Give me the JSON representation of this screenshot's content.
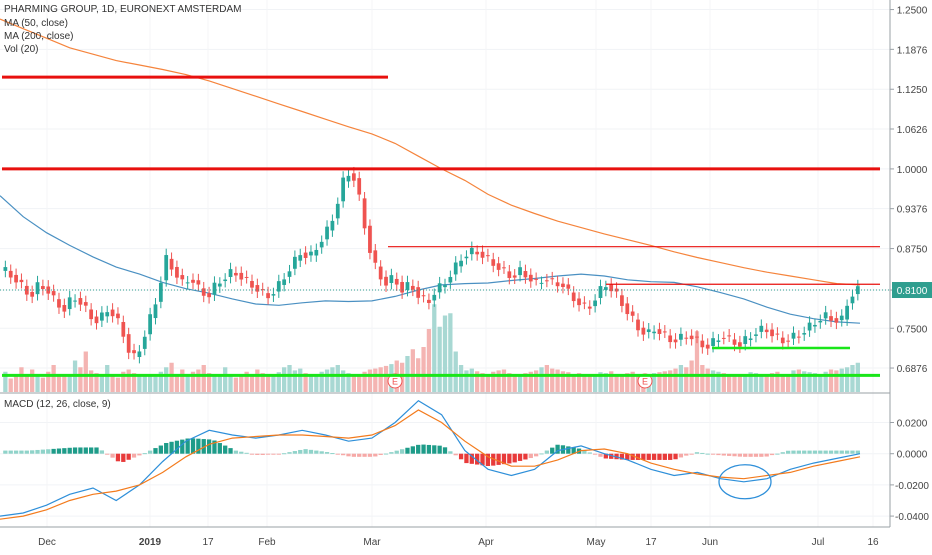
{
  "header": {
    "symbol": "PHARMING GROUP, 1D, EURONEXT AMSTERDAM",
    "indicators": [
      "MA (50, close)",
      "MA (200, close)",
      "Vol (20)"
    ]
  },
  "macd": {
    "label": "MACD (12, 26, close, 9)"
  },
  "colors": {
    "up": "#26a69a",
    "down": "#ef5350",
    "ma50": "#4a90c2",
    "ma200": "#f5843c",
    "macd_line": "#2e8fd9",
    "signal_line": "#f37b1d",
    "resistance": "#e8100e",
    "support": "#19e619",
    "price_tag": "#2f9e8f"
  },
  "chart_data": [
    {
      "type": "candlestick",
      "title": "PHARMING GROUP, 1D, EURONEXT AMSTERDAM",
      "y_ticks": [
        "1.2500",
        "1.1876",
        "1.1250",
        "1.0626",
        "1.0000",
        "0.9376",
        "0.8750",
        "0.8100",
        "0.7500",
        "0.6876"
      ],
      "x_ticks": [
        "Dec",
        "2019",
        "17",
        "Feb",
        "Mar",
        "Apr",
        "May",
        "17",
        "Jun",
        "Jul",
        "16"
      ],
      "ylim": [
        0.65,
        1.265
      ],
      "last_price": "0.8100",
      "series": [
        {
          "name": "MA (50, close)",
          "kind": "line",
          "values": [
            0.958,
            0.925,
            0.9,
            0.88,
            0.862,
            0.846,
            0.835,
            0.822,
            0.812,
            0.805,
            0.796,
            0.788,
            0.786,
            0.79,
            0.793,
            0.792,
            0.793,
            0.8,
            0.81,
            0.818,
            0.82,
            0.821,
            0.825,
            0.828,
            0.832,
            0.835,
            0.832,
            0.826,
            0.823,
            0.822,
            0.815,
            0.806,
            0.796,
            0.783,
            0.772,
            0.765,
            0.76,
            0.758
          ]
        },
        {
          "name": "MA (200, close)",
          "kind": "line",
          "values": [
            1.235,
            1.22,
            1.205,
            1.19,
            1.18,
            1.17,
            1.163,
            1.156,
            1.148,
            1.138,
            1.126,
            1.114,
            1.102,
            1.09,
            1.078,
            1.066,
            1.055,
            1.04,
            1.02,
            1.0,
            0.982,
            0.96,
            0.943,
            0.93,
            0.918,
            0.908,
            0.898,
            0.889,
            0.88,
            0.87,
            0.861,
            0.853,
            0.845,
            0.838,
            0.832,
            0.826,
            0.82,
            0.818
          ]
        },
        {
          "name": "Vol (20)",
          "kind": "volume",
          "values": [
            0.45,
            0.3,
            0.35,
            0.55,
            0.4,
            0.5,
            0.38,
            0.32,
            0.45,
            0.6,
            0.35,
            0.4,
            0.38,
            0.7,
            0.55,
            0.9,
            0.48,
            0.42,
            0.38,
            0.6,
            0.35,
            0.32,
            0.45,
            0.5,
            0.42,
            0.38,
            0.4,
            0.36,
            0.34,
            0.45,
            0.55,
            0.65,
            0.4,
            0.5,
            0.38,
            0.45,
            0.5,
            0.6,
            0.42,
            0.38,
            0.4,
            0.55,
            0.35,
            0.32,
            0.4,
            0.45,
            0.38,
            0.5,
            0.42,
            0.36,
            0.4,
            0.44,
            0.55,
            0.6,
            0.48,
            0.52,
            0.42,
            0.4,
            0.38,
            0.45,
            0.5,
            0.55,
            0.6,
            0.48,
            0.42,
            0.38,
            0.4,
            0.45,
            0.5,
            0.52,
            0.55,
            0.58,
            0.62,
            0.7,
            0.65,
            0.8,
            0.95,
            0.75,
            1.0,
            1.4,
            1.95,
            1.45,
            1.7,
            1.75,
            0.9,
            0.6,
            0.48,
            0.52,
            0.46,
            0.42,
            0.4,
            0.45,
            0.48,
            0.5,
            0.42,
            0.38,
            0.4,
            0.42,
            0.45,
            0.48,
            0.55,
            0.6,
            0.52,
            0.5,
            0.46,
            0.44,
            0.4,
            0.42,
            0.38,
            0.36,
            0.4,
            0.44,
            0.42,
            0.46,
            0.4,
            0.38,
            0.42,
            0.45,
            0.4,
            0.38,
            0.36,
            0.42,
            0.44,
            0.46,
            0.48,
            0.52,
            0.6,
            0.55,
            0.7,
            1.35,
            0.6,
            0.52,
            0.48,
            0.45,
            0.42,
            0.4,
            0.38,
            0.36,
            0.4,
            0.44,
            0.42,
            0.4,
            0.38,
            0.42,
            0.45,
            0.4,
            0.36,
            0.48,
            0.5,
            0.46,
            0.44,
            0.42,
            0.4,
            0.45,
            0.5,
            0.48,
            0.52,
            0.55,
            0.6,
            0.65
          ]
        },
        {
          "name": "Resistance",
          "kind": "hline",
          "segments": [
            {
              "y": 1.144,
              "from": "Nov",
              "to": "Mar"
            },
            {
              "y": 1.0,
              "from": "Nov",
              "to": "Jul 16"
            },
            {
              "y": 0.878,
              "from": "Mar",
              "to": "Jul 16"
            },
            {
              "y": 0.819,
              "from": "May",
              "to": "Jul 16"
            }
          ]
        },
        {
          "name": "Support",
          "kind": "hline",
          "segments": [
            {
              "y": 0.676,
              "from": "Nov",
              "to": "Jul 16"
            },
            {
              "y": 0.719,
              "from": "Jun",
              "to": "Jul"
            }
          ]
        }
      ]
    },
    {
      "type": "bar_line",
      "title": "MACD (12, 26, close, 9)",
      "y_ticks": [
        "0.0200",
        "0.0000",
        "-0.0200",
        "-0.0400"
      ],
      "ylim": [
        -0.047,
        0.037
      ],
      "series": [
        {
          "name": "Histogram",
          "kind": "bar"
        },
        {
          "name": "MACD",
          "kind": "line"
        },
        {
          "name": "Signal",
          "kind": "line"
        }
      ]
    }
  ]
}
